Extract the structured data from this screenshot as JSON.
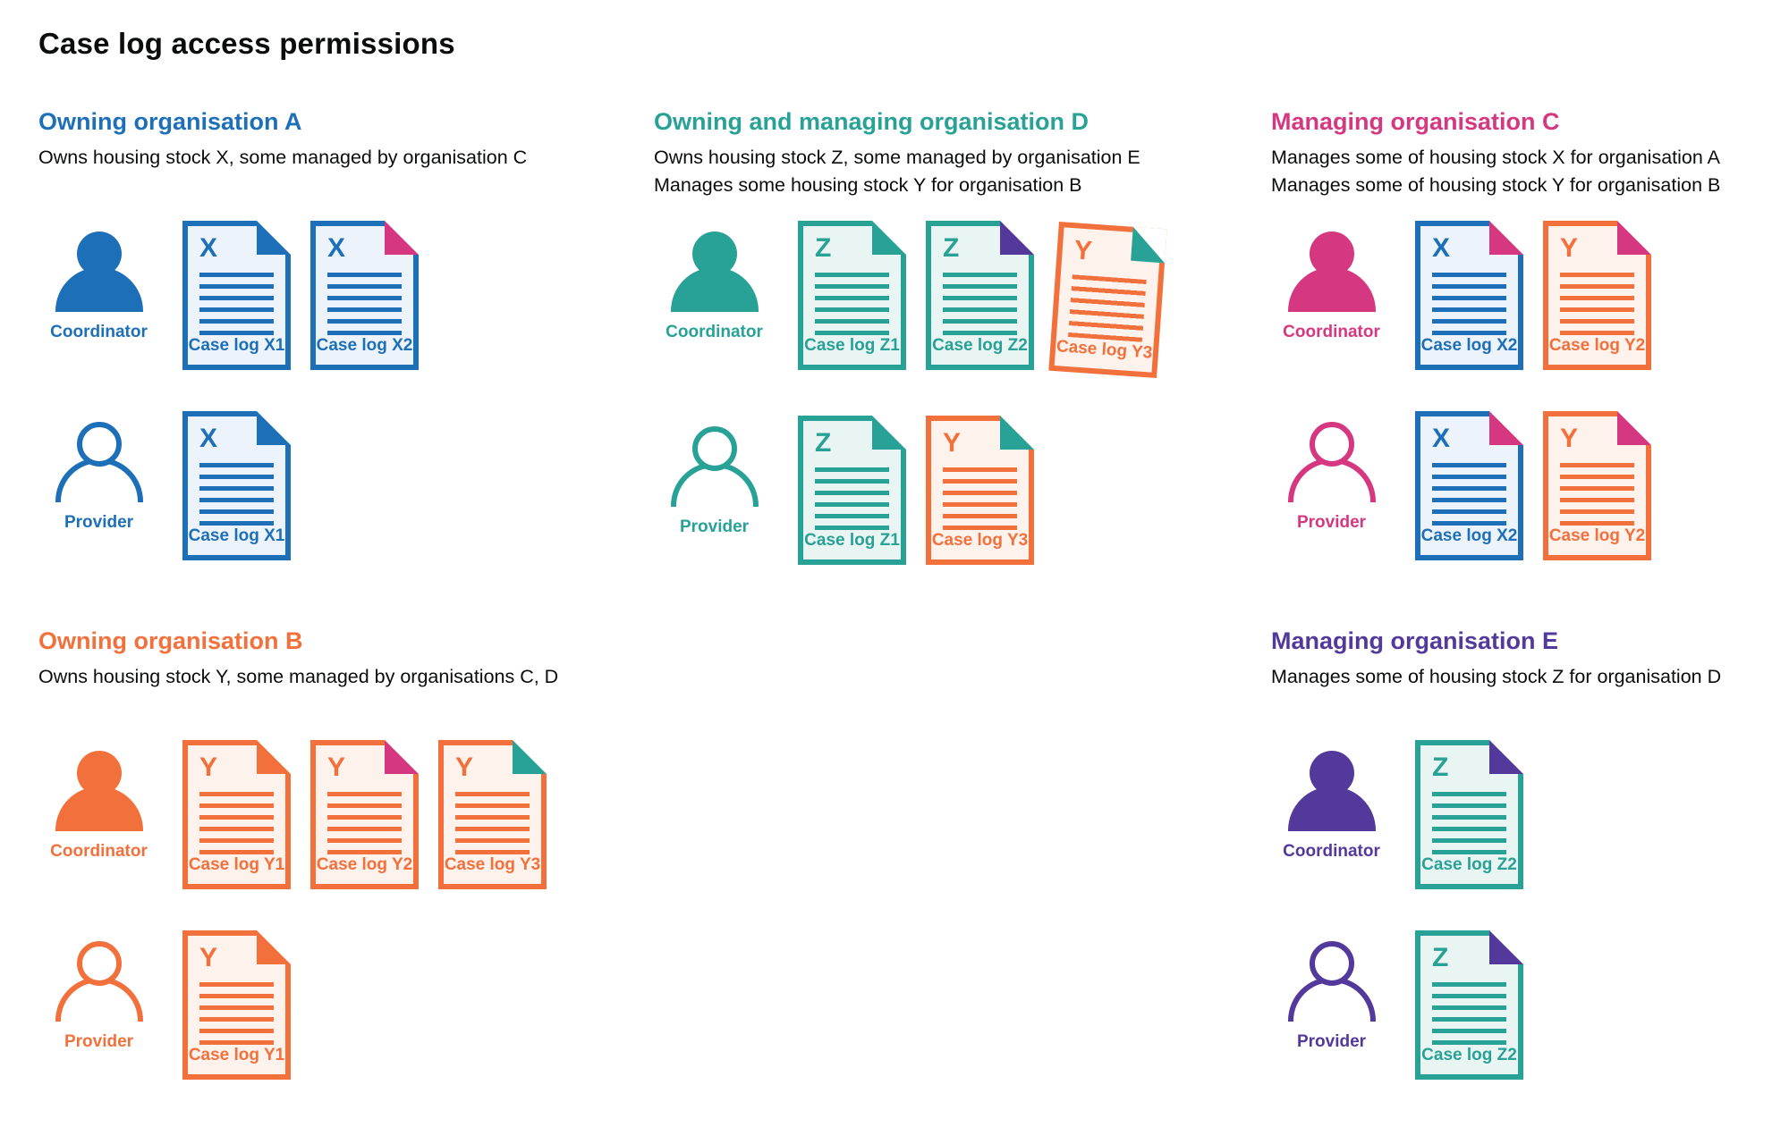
{
  "title": "Case log access permissions",
  "palette": {
    "blue": "#1d70b8",
    "teal": "#28a197",
    "pink": "#d53880",
    "orange": "#f2703b",
    "purple": "#54399c",
    "text": "#0b0c0c",
    "doc_fill_blue": "#edf3fa",
    "doc_fill_teal": "#e9f5f3",
    "doc_fill_orange": "#fdf2ec"
  },
  "sections": [
    {
      "heading": "Owning organisation A",
      "color": "blue",
      "subtitle": [
        "Owns housing stock X, some managed by organisation C"
      ],
      "coordinator": {
        "role": "Coordinator",
        "docs": [
          {
            "letter": "X",
            "label": "Case log X1",
            "doc_color": "blue",
            "fold_color": "blue"
          },
          {
            "letter": "X",
            "label": "Case log X2",
            "doc_color": "blue",
            "fold_color": "pink"
          }
        ]
      },
      "provider": {
        "role": "Provider",
        "docs": [
          {
            "letter": "X",
            "label": "Case log X1",
            "doc_color": "blue",
            "fold_color": "blue"
          }
        ]
      }
    },
    {
      "heading": "Owning and managing organisation D",
      "color": "teal",
      "subtitle": [
        "Owns housing stock Z, some managed by organisation E",
        "Manages some housing stock Y for organisation B"
      ],
      "coordinator": {
        "role": "Coordinator",
        "docs": [
          {
            "letter": "Z",
            "label": "Case log Z1",
            "doc_color": "teal",
            "fold_color": "teal"
          },
          {
            "letter": "Z",
            "label": "Case log Z2",
            "doc_color": "teal",
            "fold_color": "purple"
          },
          {
            "letter": "Y",
            "label": "Case log Y3",
            "doc_color": "orange",
            "fold_color": "teal"
          }
        ]
      },
      "provider": {
        "role": "Provider",
        "docs": [
          {
            "letter": "Z",
            "label": "Case log Z1",
            "doc_color": "teal",
            "fold_color": "teal"
          },
          {
            "letter": "Y",
            "label": "Case log Y3",
            "doc_color": "orange",
            "fold_color": "teal"
          }
        ]
      }
    },
    {
      "heading": "Managing organisation C",
      "color": "pink",
      "subtitle": [
        "Manages some of housing stock X for organisation A",
        "Manages some of housing stock Y for organisation B"
      ],
      "coordinator": {
        "role": "Coordinator",
        "docs": [
          {
            "letter": "X",
            "label": "Case log X2",
            "doc_color": "blue",
            "fold_color": "pink"
          },
          {
            "letter": "Y",
            "label": "Case log Y2",
            "doc_color": "orange",
            "fold_color": "pink"
          }
        ]
      },
      "provider": {
        "role": "Provider",
        "docs": [
          {
            "letter": "X",
            "label": "Case log X2",
            "doc_color": "blue",
            "fold_color": "pink"
          },
          {
            "letter": "Y",
            "label": "Case log Y2",
            "doc_color": "orange",
            "fold_color": "pink"
          }
        ]
      }
    },
    {
      "heading": "Owning organisation B",
      "color": "orange",
      "subtitle": [
        "Owns housing stock Y, some managed by organisations C, D"
      ],
      "coordinator": {
        "role": "Coordinator",
        "docs": [
          {
            "letter": "Y",
            "label": "Case log Y1",
            "doc_color": "orange",
            "fold_color": "orange"
          },
          {
            "letter": "Y",
            "label": "Case log Y2",
            "doc_color": "orange",
            "fold_color": "pink"
          },
          {
            "letter": "Y",
            "label": "Case log Y3",
            "doc_color": "orange",
            "fold_color": "teal"
          }
        ]
      },
      "provider": {
        "role": "Provider",
        "docs": [
          {
            "letter": "Y",
            "label": "Case log Y1",
            "doc_color": "orange",
            "fold_color": "orange"
          }
        ]
      }
    },
    {
      "heading": "Managing organisation E",
      "color": "purple",
      "subtitle": [
        "Manages some of housing stock Z for organisation D"
      ],
      "coordinator": {
        "role": "Coordinator",
        "docs": [
          {
            "letter": "Z",
            "label": "Case log Z2",
            "doc_color": "teal",
            "fold_color": "purple"
          }
        ]
      },
      "provider": {
        "role": "Provider",
        "docs": [
          {
            "letter": "Z",
            "label": "Case log Z2",
            "doc_color": "teal",
            "fold_color": "purple"
          }
        ]
      }
    }
  ]
}
